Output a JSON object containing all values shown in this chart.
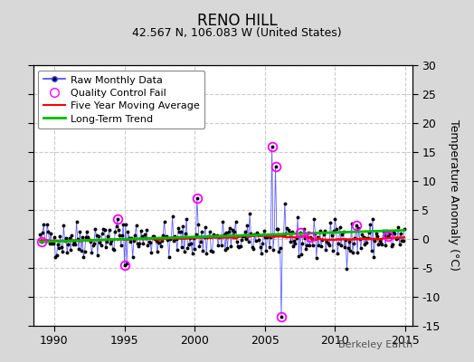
{
  "title": "RENO HILL",
  "subtitle": "42.567 N, 106.083 W (United States)",
  "ylabel": "Temperature Anomaly (°C)",
  "watermark": "Berkeley Earth",
  "xlim": [
    1988.5,
    2015.5
  ],
  "ylim": [
    -15,
    30
  ],
  "yticks": [
    -15,
    -10,
    -5,
    0,
    5,
    10,
    15,
    20,
    25,
    30
  ],
  "xticks": [
    1990,
    1995,
    2000,
    2005,
    2010,
    2015
  ],
  "fig_bg": "#d8d8d8",
  "plot_bg": "#ffffff",
  "raw_color": "#4444ff",
  "raw_marker_color": "#000000",
  "qc_fail_color": "#ff00ff",
  "moving_avg_color": "#ff0000",
  "trend_color": "#00bb00",
  "seed": 42,
  "start_year": 1989.0,
  "end_year": 2015.0
}
